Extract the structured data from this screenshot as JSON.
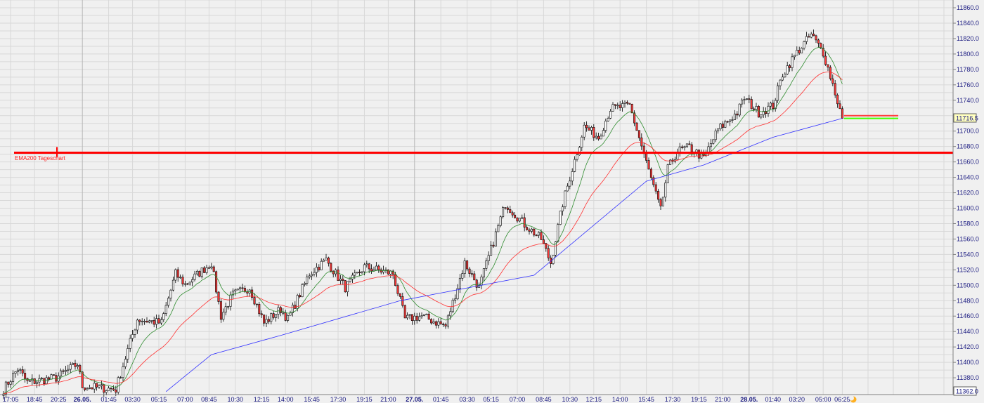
{
  "chart_data": {
    "type": "candlestick",
    "bar_interval": "10 min",
    "ylim": [
      11362.0,
      11875.0
    ],
    "y_ticks": [
      "11860.0",
      "11840.0",
      "11820.0",
      "11800.0",
      "11780.0",
      "11760.0",
      "11740.0",
      "11700.0",
      "11680.0",
      "11660.0",
      "11640.0",
      "11620.0",
      "11600.0",
      "11580.0",
      "11560.0",
      "11540.0",
      "11520.0",
      "11500.0",
      "11480.0",
      "11460.0",
      "11440.0",
      "11420.0",
      "11400.0",
      "11380.0"
    ],
    "y_tick_values": [
      11860,
      11840,
      11820,
      11800,
      11780,
      11760,
      11740,
      11700,
      11680,
      11660,
      11640,
      11620,
      11600,
      11580,
      11560,
      11540,
      11520,
      11500,
      11480,
      11460,
      11440,
      11420,
      11400,
      11380
    ],
    "current_price_label": "11716.5",
    "current_price": 11716.5,
    "min_price_label": "11362.0",
    "x_ticks": [
      {
        "label": "17:05",
        "bar": 3,
        "day": false
      },
      {
        "label": "18:45",
        "bar": 13,
        "day": false
      },
      {
        "label": "20:25",
        "bar": 23,
        "day": false
      },
      {
        "label": "26.05.",
        "bar": 33,
        "day": true
      },
      {
        "label": "01:45",
        "bar": 44,
        "day": false
      },
      {
        "label": "03:30",
        "bar": 54,
        "day": false
      },
      {
        "label": "05:15",
        "bar": 65,
        "day": false
      },
      {
        "label": "07:00",
        "bar": 76,
        "day": false
      },
      {
        "label": "08:45",
        "bar": 86,
        "day": false
      },
      {
        "label": "10:30",
        "bar": 97,
        "day": false
      },
      {
        "label": "12:15",
        "bar": 108,
        "day": false
      },
      {
        "label": "14:00",
        "bar": 118,
        "day": false
      },
      {
        "label": "15:45",
        "bar": 129,
        "day": false
      },
      {
        "label": "17:30",
        "bar": 140,
        "day": false
      },
      {
        "label": "19:15",
        "bar": 151,
        "day": false
      },
      {
        "label": "21:00",
        "bar": 161,
        "day": false
      },
      {
        "label": "27.05.",
        "bar": 172,
        "day": true
      },
      {
        "label": "01:45",
        "bar": 183,
        "day": false
      },
      {
        "label": "03:30",
        "bar": 194,
        "day": false
      },
      {
        "label": "05:15",
        "bar": 204,
        "day": false
      },
      {
        "label": "07:00",
        "bar": 215,
        "day": false
      },
      {
        "label": "08:45",
        "bar": 226,
        "day": false
      },
      {
        "label": "10:30",
        "bar": 237,
        "day": false
      },
      {
        "label": "12:15",
        "bar": 247,
        "day": false
      },
      {
        "label": "14:00",
        "bar": 258,
        "day": false
      },
      {
        "label": "15:45",
        "bar": 269,
        "day": false
      },
      {
        "label": "17:30",
        "bar": 280,
        "day": false
      },
      {
        "label": "19:15",
        "bar": 291,
        "day": false
      },
      {
        "label": "21:00",
        "bar": 301,
        "day": false
      },
      {
        "label": "28.05.",
        "bar": 312,
        "day": true
      },
      {
        "label": "01:40",
        "bar": 322,
        "day": false
      },
      {
        "label": "03:20",
        "bar": 332,
        "day": false
      },
      {
        "label": "05:00",
        "bar": 343,
        "day": false
      },
      {
        "label": "06:25",
        "bar": 351,
        "day": false
      }
    ],
    "price_path": [
      [
        0,
        11365
      ],
      [
        6,
        11392
      ],
      [
        10,
        11374
      ],
      [
        22,
        11380
      ],
      [
        31,
        11398
      ],
      [
        33,
        11369
      ],
      [
        47,
        11365
      ],
      [
        50,
        11396
      ],
      [
        56,
        11456
      ],
      [
        66,
        11451
      ],
      [
        72,
        11515
      ],
      [
        76,
        11501
      ],
      [
        87,
        11529
      ],
      [
        91,
        11460
      ],
      [
        96,
        11488
      ],
      [
        103,
        11497
      ],
      [
        109,
        11451
      ],
      [
        116,
        11469
      ],
      [
        119,
        11456
      ],
      [
        128,
        11515
      ],
      [
        135,
        11533
      ],
      [
        143,
        11497
      ],
      [
        151,
        11524
      ],
      [
        163,
        11515
      ],
      [
        168,
        11456
      ],
      [
        175,
        11460
      ],
      [
        185,
        11447
      ],
      [
        193,
        11529
      ],
      [
        199,
        11497
      ],
      [
        210,
        11606
      ],
      [
        218,
        11579
      ],
      [
        225,
        11560
      ],
      [
        229,
        11529
      ],
      [
        234,
        11606
      ],
      [
        238,
        11651
      ],
      [
        243,
        11706
      ],
      [
        249,
        11692
      ],
      [
        254,
        11729
      ],
      [
        262,
        11733
      ],
      [
        265,
        11702
      ],
      [
        271,
        11638
      ],
      [
        275,
        11597
      ],
      [
        278,
        11651
      ],
      [
        282,
        11674
      ],
      [
        287,
        11679
      ],
      [
        293,
        11665
      ],
      [
        299,
        11702
      ],
      [
        307,
        11724
      ],
      [
        310,
        11743
      ],
      [
        316,
        11724
      ],
      [
        322,
        11733
      ],
      [
        326,
        11774
      ],
      [
        332,
        11802
      ],
      [
        338,
        11825
      ],
      [
        343,
        11802
      ],
      [
        347,
        11761
      ],
      [
        351,
        11716.5
      ]
    ],
    "indicators": {
      "ema_fast": {
        "color": "#2e8b2e"
      },
      "ema_slow": {
        "color": "#ff3030"
      },
      "ema_long": {
        "color": "#3030ff",
        "points": [
          [
            68,
            11362
          ],
          [
            87,
            11410
          ],
          [
            116,
            11435
          ],
          [
            166,
            11480
          ],
          [
            222,
            11513
          ],
          [
            269,
            11635
          ],
          [
            293,
            11656
          ],
          [
            322,
            11692
          ],
          [
            351,
            11716.5
          ]
        ]
      }
    },
    "levels": [
      {
        "label": "EMA200 Tageschart",
        "price": 11672,
        "color": "#ff0000"
      },
      {
        "label": "",
        "price": 11720,
        "color": "#ff4040"
      },
      {
        "label": "",
        "price": 11716.5,
        "color": "#40ff00"
      }
    ],
    "colors": {
      "up": "#ffffff",
      "down": "#ff3b3b",
      "outline": "#000000",
      "grid": "#d8d8d8",
      "day_grid": "#b8b8b8",
      "axis_text": "#1a1a80"
    }
  }
}
